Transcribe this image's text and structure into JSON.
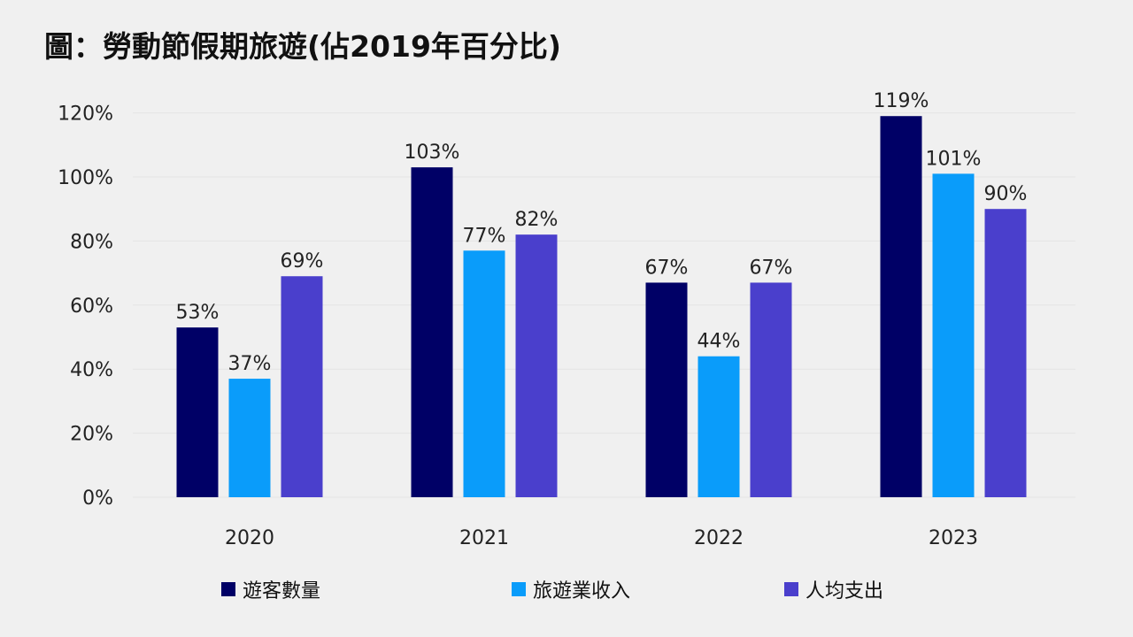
{
  "chart_data": {
    "type": "bar",
    "title": "圖：勞動節假期旅遊(佔2019年百分比)",
    "categories": [
      "2020",
      "2021",
      "2022",
      "2023"
    ],
    "series": [
      {
        "name": "遊客數量",
        "color": "#000066",
        "values": [
          53,
          103,
          67,
          119
        ]
      },
      {
        "name": "旅遊業收入",
        "color": "#0a9cfa",
        "values": [
          37,
          77,
          44,
          101
        ]
      },
      {
        "name": "人均支出",
        "color": "#4a3fcc",
        "values": [
          69,
          82,
          67,
          90
        ]
      }
    ],
    "value_suffix": "%",
    "ylim": [
      0,
      120
    ],
    "yticks": [
      0,
      20,
      40,
      60,
      80,
      100,
      120
    ],
    "ytick_labels": [
      "0%",
      "20%",
      "40%",
      "60%",
      "80%",
      "100%",
      "120%"
    ],
    "xlabel": "",
    "ylabel": "",
    "grid": true,
    "legend_position": "bottom"
  }
}
